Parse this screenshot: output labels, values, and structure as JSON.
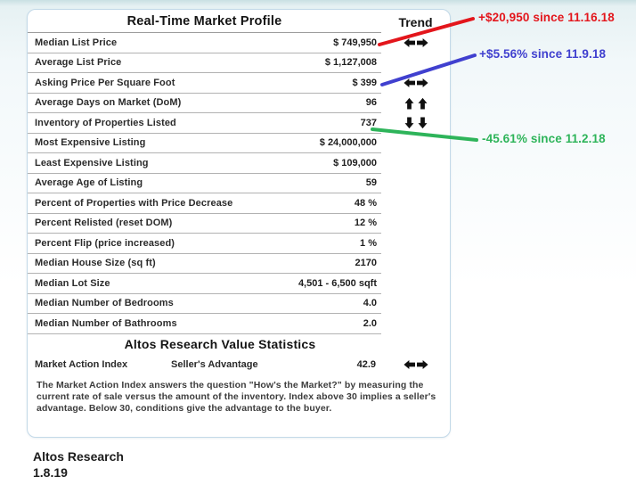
{
  "card": {
    "title": "Real-Time Market Profile",
    "trend_header": "Trend",
    "trend_arrow_color": "#101010",
    "rows": [
      {
        "label": "Median List Price",
        "value": "$ 749,950",
        "trend": "flat"
      },
      {
        "label": "Average List Price",
        "value": "$ 1,127,008",
        "trend": ""
      },
      {
        "label": "Asking Price Per Square Foot",
        "value": "$ 399",
        "trend": "flat"
      },
      {
        "label": "Average Days on Market (DoM)",
        "value": "96",
        "trend": "up"
      },
      {
        "label": "Inventory of Properties Listed",
        "value": "737",
        "trend": "down"
      },
      {
        "label": "Most Expensive Listing",
        "value": "$ 24,000,000",
        "trend": ""
      },
      {
        "label": "Least Expensive Listing",
        "value": "$ 109,000",
        "trend": ""
      },
      {
        "label": "Average Age of Listing",
        "value": "59",
        "trend": ""
      },
      {
        "label": "Percent of Properties with Price Decrease",
        "value": "48 %",
        "trend": ""
      },
      {
        "label": "Percent Relisted (reset DOM)",
        "value": "12 %",
        "trend": ""
      },
      {
        "label": "Percent Flip (price increased)",
        "value": "1 %",
        "trend": ""
      },
      {
        "label": "Median House Size (sq ft)",
        "value": "2170",
        "trend": ""
      },
      {
        "label": "Median Lot Size",
        "value": "4,501 - 6,500 sqft",
        "trend": ""
      },
      {
        "label": "Median Number of Bedrooms",
        "value": "4.0",
        "trend": ""
      },
      {
        "label": "Median Number of Bathrooms",
        "value": "2.0",
        "trend": ""
      }
    ],
    "value_section": {
      "title": "Altos Research Value Statistics",
      "row": {
        "label": "Market Action Index",
        "status": "Seller's Advantage",
        "value": "42.9",
        "trend": "flat"
      },
      "description": "The Market Action Index answers the question \"How's the Market?\" by measuring the current rate of sale versus the amount of the inventory.  Index above 30 implies a seller's advantage. Below 30, conditions give the advantage to the buyer."
    }
  },
  "annotations": [
    {
      "text": "+$20,950 since 11.16.18",
      "color": "#e3161c"
    },
    {
      "text": "+$5.56% since 11.9.18",
      "color": "#4040cf"
    },
    {
      "text": "-45.61% since 11.2.18",
      "color": "#2eb45a"
    }
  ],
  "footer": {
    "source": "Altos Research",
    "date": "1.8.19"
  }
}
